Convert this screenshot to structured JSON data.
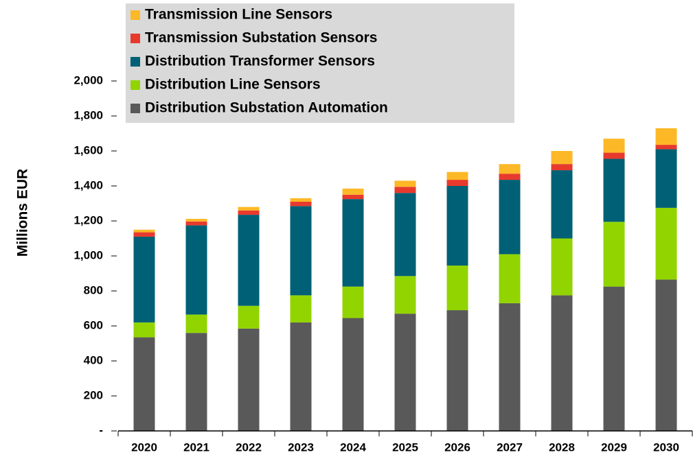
{
  "chart_data": {
    "type": "stacked_bar",
    "y_label": "Millions EUR",
    "categories": [
      "2020",
      "2021",
      "2022",
      "2023",
      "2024",
      "2025",
      "2026",
      "2027",
      "2028",
      "2029",
      "2030"
    ],
    "series": [
      {
        "name": "Distribution Substation Automation",
        "color": "#595959",
        "values": [
          535,
          560,
          585,
          620,
          645,
          670,
          690,
          730,
          775,
          825,
          865
        ]
      },
      {
        "name": "Distribution Line Sensors",
        "color": "#92d400",
        "values": [
          85,
          105,
          130,
          155,
          180,
          215,
          255,
          280,
          325,
          370,
          410
        ]
      },
      {
        "name": "Distribution Transformer Sensors",
        "color": "#006075",
        "values": [
          490,
          510,
          520,
          510,
          500,
          475,
          455,
          425,
          390,
          360,
          335
        ]
      },
      {
        "name": "Transmission Substation Sensors",
        "color": "#e8392d",
        "values": [
          25,
          22,
          25,
          25,
          25,
          35,
          35,
          35,
          35,
          35,
          25
        ]
      },
      {
        "name": "Transmission Line Sensors",
        "color": "#fdb827",
        "values": [
          15,
          15,
          20,
          20,
          35,
          35,
          45,
          55,
          75,
          80,
          95
        ]
      }
    ],
    "ylim": [
      0,
      2000
    ],
    "yticks": [
      {
        "value": 0,
        "label": "-"
      },
      200,
      400,
      600,
      800,
      {
        "value": 1000,
        "label": "1,000"
      },
      {
        "value": 1200,
        "label": "1,200"
      },
      {
        "value": 1400,
        "label": "1,400"
      },
      {
        "value": 1600,
        "label": "1,600"
      },
      {
        "value": 1800,
        "label": "1,800"
      },
      {
        "value": 2000,
        "label": "2,000"
      }
    ],
    "legend": "top-left",
    "legend_reversed": true,
    "grid": false
  }
}
